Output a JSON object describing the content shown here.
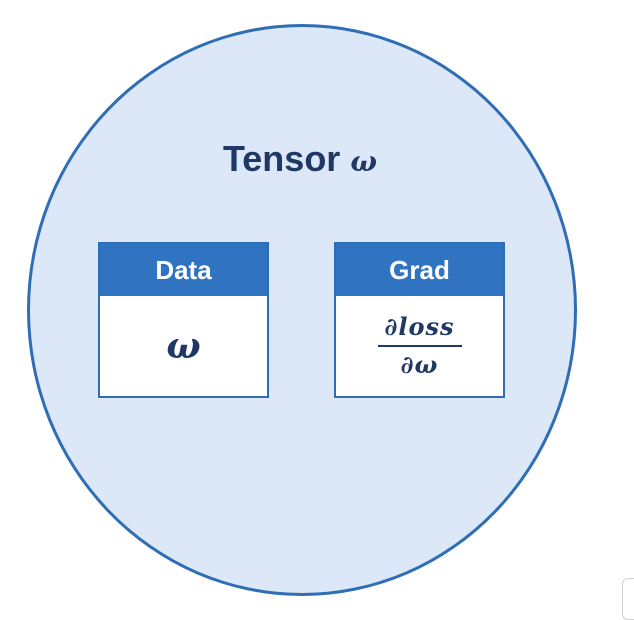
{
  "tensor": {
    "title": "Tensor",
    "symbol": "ω"
  },
  "data_box": {
    "label": "Data",
    "value": "ω"
  },
  "grad_box": {
    "label": "Grad",
    "numerator": "∂loss",
    "denominator": "∂ω"
  },
  "colors": {
    "circle_fill": "#dce7f7",
    "circle_border": "#2f6db5",
    "header_fill": "#2f73c1",
    "text_dark": "#1f3864"
  }
}
